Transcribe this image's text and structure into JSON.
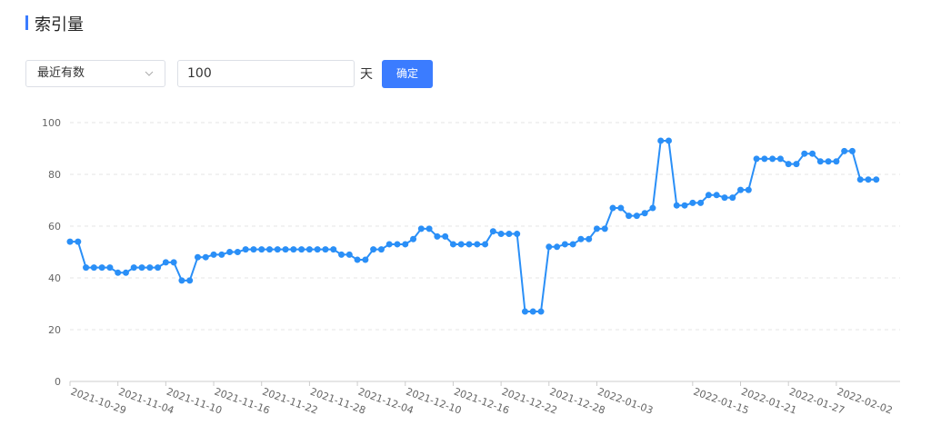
{
  "header": {
    "title": "索引量"
  },
  "controls": {
    "select": "最近有数",
    "input": "100",
    "unit": "天",
    "button": "确定"
  },
  "chart_data": {
    "type": "line",
    "color": "#2a8ff7",
    "grid": true,
    "x": [
      "2021-10-29",
      "2021-10-30",
      "2021-10-31",
      "2021-11-01",
      "2021-11-02",
      "2021-11-03",
      "2021-11-04",
      "2021-11-05",
      "2021-11-06",
      "2021-11-07",
      "2021-11-08",
      "2021-11-09",
      "2021-11-10",
      "2021-11-11",
      "2021-11-12",
      "2021-11-13",
      "2021-11-14",
      "2021-11-15",
      "2021-11-16",
      "2021-11-17",
      "2021-11-18",
      "2021-11-19",
      "2021-11-20",
      "2021-11-21",
      "2021-11-22",
      "2021-11-23",
      "2021-11-24",
      "2021-11-25",
      "2021-11-26",
      "2021-11-27",
      "2021-11-28",
      "2021-11-29",
      "2021-11-30",
      "2021-12-01",
      "2021-12-02",
      "2021-12-03",
      "2021-12-04",
      "2021-12-05",
      "2021-12-06",
      "2021-12-07",
      "2021-12-08",
      "2021-12-09",
      "2021-12-10",
      "2021-12-11",
      "2021-12-12",
      "2021-12-13",
      "2021-12-14",
      "2021-12-15",
      "2021-12-16",
      "2021-12-17",
      "2021-12-18",
      "2021-12-19",
      "2021-12-20",
      "2021-12-21",
      "2021-12-22",
      "2021-12-23",
      "2021-12-24",
      "2021-12-25",
      "2021-12-26",
      "2021-12-27",
      "2021-12-28",
      "2021-12-29",
      "2021-12-30",
      "2021-12-31",
      "2022-01-01",
      "2022-01-02",
      "2022-01-03",
      "2022-01-04",
      "2022-01-05",
      "2022-01-06",
      "2022-01-07",
      "2022-01-08",
      "2022-01-09",
      "2022-01-10",
      "2022-01-11",
      "2022-01-12",
      "2022-01-13",
      "2022-01-14",
      "2022-01-15",
      "2022-01-16",
      "2022-01-17",
      "2022-01-18",
      "2022-01-19",
      "2022-01-20",
      "2022-01-21",
      "2022-01-22",
      "2022-01-23",
      "2022-01-24",
      "2022-01-25",
      "2022-01-26",
      "2022-01-27",
      "2022-01-28",
      "2022-01-29",
      "2022-01-30",
      "2022-01-31",
      "2022-02-01",
      "2022-02-02",
      "2022-02-03",
      "2022-02-04",
      "2022-02-05",
      "2022-02-06",
      "2022-02-07"
    ],
    "values": [
      54,
      54,
      44,
      44,
      44,
      44,
      42,
      42,
      44,
      44,
      44,
      44,
      46,
      46,
      39,
      39,
      48,
      48,
      49,
      49,
      50,
      50,
      51,
      51,
      51,
      51,
      51,
      51,
      51,
      51,
      51,
      51,
      51,
      51,
      49,
      49,
      47,
      47,
      51,
      51,
      53,
      53,
      53,
      55,
      59,
      59,
      56,
      56,
      53,
      53,
      53,
      53,
      53,
      58,
      57,
      57,
      57,
      27,
      27,
      27,
      52,
      52,
      53,
      53,
      55,
      55,
      59,
      59,
      67,
      67,
      64,
      64,
      65,
      67,
      93,
      93,
      68,
      68,
      69,
      69,
      72,
      72,
      71,
      71,
      74,
      74,
      86,
      86,
      86,
      86,
      84,
      84,
      88,
      88,
      85,
      85,
      85,
      89,
      89,
      78,
      78,
      78
    ],
    "xticks": [
      "2021-10-29",
      "2021-11-04",
      "2021-11-10",
      "2021-11-16",
      "2021-11-22",
      "2021-11-28",
      "2021-12-04",
      "2021-12-10",
      "2021-12-16",
      "2021-12-22",
      "2021-12-28",
      "2022-01-03",
      "2022-01-15",
      "2022-01-21",
      "2022-01-27",
      "2022-02-02"
    ],
    "ylim": [
      0,
      100
    ],
    "yticks": [
      0,
      20,
      40,
      60,
      80,
      100
    ]
  }
}
